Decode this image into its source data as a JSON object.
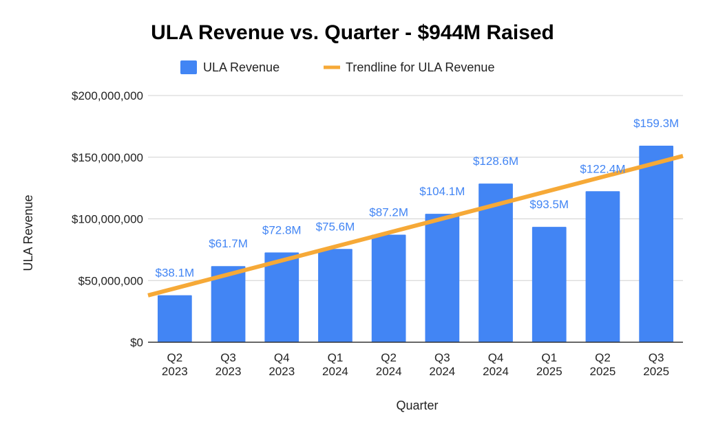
{
  "chart_data": {
    "type": "bar",
    "title": "ULA Revenue vs. Quarter - $944M Raised",
    "xlabel": "Quarter",
    "ylabel": "ULA Revenue",
    "ylim": [
      0,
      200000000
    ],
    "yticks": [
      0,
      50000000,
      100000000,
      150000000,
      200000000
    ],
    "ytick_labels": [
      "$0",
      "$50,000,000",
      "$100,000,000",
      "$150,000,000",
      "$200,000,000"
    ],
    "grid": true,
    "legend_position": "top-center",
    "categories": [
      [
        "Q2",
        "2023"
      ],
      [
        "Q3",
        "2023"
      ],
      [
        "Q4",
        "2023"
      ],
      [
        "Q1",
        "2024"
      ],
      [
        "Q2",
        "2024"
      ],
      [
        "Q3",
        "2024"
      ],
      [
        "Q4",
        "2024"
      ],
      [
        "Q1",
        "2025"
      ],
      [
        "Q2",
        "2025"
      ],
      [
        "Q3",
        "2025"
      ]
    ],
    "series": [
      {
        "name": "ULA Revenue",
        "values": [
          38100000,
          61700000,
          72800000,
          75600000,
          87200000,
          104100000,
          128600000,
          93500000,
          122400000,
          159300000
        ],
        "data_labels": [
          "$38.1M",
          "$61.7M",
          "$72.8M",
          "$75.6M",
          "$87.2M",
          "$104.1M",
          "$128.6M",
          "$93.5M",
          "$122.4M",
          "$159.3M"
        ]
      }
    ],
    "trendline": {
      "name": "Trendline for ULA Revenue",
      "type": "linear",
      "start_value": 38000000,
      "end_value": 151000000
    },
    "colors": {
      "bar": "#4285f4",
      "trendline": "#f6a937",
      "data_label": "#4285f4",
      "grid": "#d0d0d0",
      "axis": "#333333"
    }
  }
}
